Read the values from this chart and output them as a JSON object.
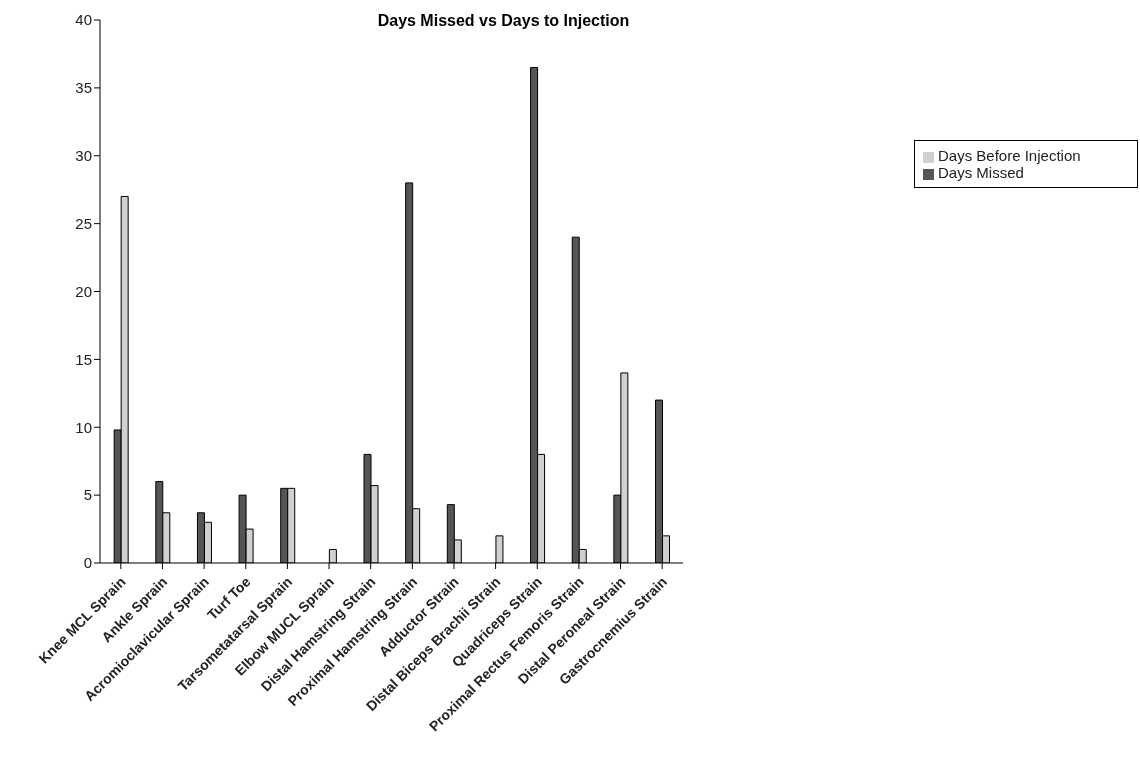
{
  "chart_data": {
    "type": "bar",
    "title": "Days Missed vs Days to Injection",
    "categories": [
      "Knee MCL Sprain",
      "Ankle Sprain",
      "Acromioclavicular Sprain",
      "Turf Toe",
      "Tarsometatarsal Sprain",
      "Elbow MUCL Sprain",
      "Distal Hamstring Strain",
      "Proximal Hamstring Strain",
      "Adductor Strain",
      "Distal Biceps Brachii Strain",
      "Quadriceps Strain",
      "Proximal Rectus Femoris Strain",
      "Distal Peroneal Strain",
      "Gastrocnemius Strain"
    ],
    "series": [
      {
        "name": "Days Missed",
        "color": "#555555",
        "values": [
          9.8,
          6,
          3.7,
          5,
          5.5,
          0,
          8,
          28,
          4.3,
          0,
          36.5,
          24,
          5,
          12
        ]
      },
      {
        "name": "Days Before Injection",
        "color": "#d0d0d0",
        "values": [
          27,
          3.7,
          3,
          2.5,
          5.5,
          1,
          5.7,
          4,
          1.7,
          2,
          8,
          1,
          14,
          2
        ]
      }
    ],
    "ylim": [
      0,
      40
    ],
    "yticks": [
      0,
      5,
      10,
      15,
      20,
      25,
      30,
      35,
      40
    ],
    "grid": false,
    "legend": "top right"
  }
}
